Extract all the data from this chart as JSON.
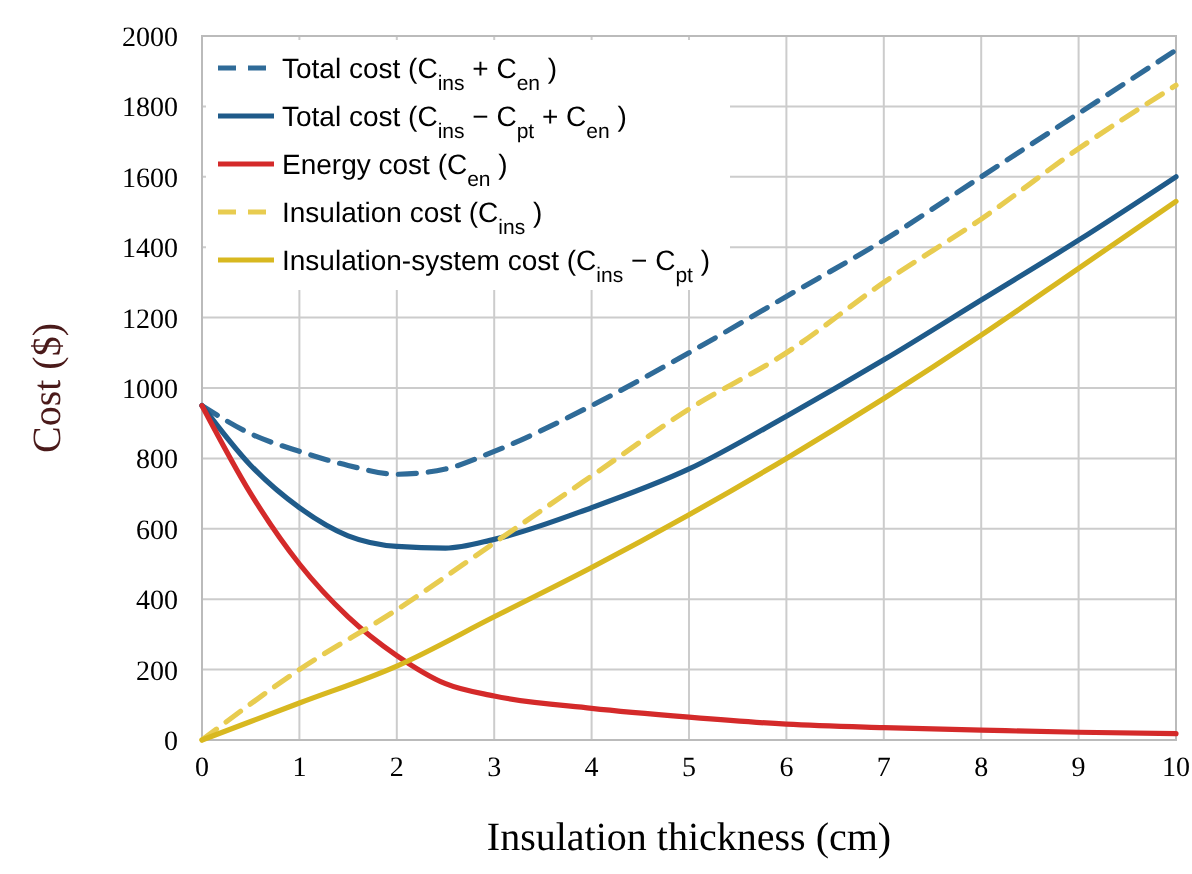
{
  "chart_data": {
    "type": "line",
    "xlabel": "Insulation thickness (cm)",
    "ylabel": "Cost ($)",
    "xlim": [
      0,
      10
    ],
    "ylim": [
      0,
      2000
    ],
    "xticks": [
      0,
      1,
      2,
      3,
      4,
      5,
      6,
      7,
      8,
      9,
      10
    ],
    "yticks": [
      0,
      200,
      400,
      600,
      800,
      1000,
      1200,
      1400,
      1600,
      1800,
      2000
    ],
    "grid": true,
    "legend": "top left",
    "marker": "none",
    "series": [
      {
        "name": "Total cost (C$_{ins}$ + C$_{en}$)",
        "color": "#2f6b98",
        "line_style": "dashed",
        "x": [
          0,
          0.5,
          1,
          1.5,
          2,
          2.5,
          3,
          4,
          5,
          6,
          7,
          8,
          9,
          10
        ],
        "values": [
          950,
          870,
          820,
          780,
          755,
          770,
          820,
          950,
          1100,
          1260,
          1420,
          1600,
          1780,
          1960
        ]
      },
      {
        "name": "Total cost (C$_{ins}$ − C$_{pt}$ + C$_{en}$)",
        "color": "#1f5b8a",
        "line_style": "solid",
        "x": [
          0,
          0.5,
          1,
          1.5,
          2,
          2.5,
          3,
          4,
          5,
          6,
          7,
          8,
          9,
          10
        ],
        "values": [
          950,
          780,
          660,
          580,
          550,
          545,
          570,
          660,
          770,
          920,
          1080,
          1250,
          1420,
          1600
        ]
      },
      {
        "name": "Energy cost (C$_{en}$)",
        "color": "#d42a2a",
        "line_style": "solid",
        "x": [
          0,
          0.5,
          1,
          1.5,
          2,
          2.5,
          3,
          4,
          5,
          6,
          7,
          8,
          9,
          10
        ],
        "values": [
          950,
          700,
          500,
          350,
          240,
          160,
          125,
          90,
          65,
          45,
          35,
          28,
          22,
          18
        ]
      },
      {
        "name": "Insulation cost (C$_{ins}$)",
        "color": "#e8cc50",
        "line_style": "dashed",
        "x": [
          0,
          1,
          2,
          3,
          4,
          5,
          6,
          7,
          8,
          9,
          10
        ],
        "values": [
          0,
          200,
          370,
          560,
          750,
          940,
          1100,
          1300,
          1480,
          1680,
          1860
        ]
      },
      {
        "name": "Insulation-system cost (C$_{ins}$ − C$_{pt}$)",
        "color": "#d8b820",
        "line_style": "solid",
        "x": [
          0,
          1,
          2,
          3,
          4,
          5,
          6,
          7,
          8,
          9,
          10
        ],
        "values": [
          0,
          105,
          210,
          350,
          490,
          640,
          800,
          970,
          1150,
          1340,
          1530
        ]
      }
    ]
  }
}
